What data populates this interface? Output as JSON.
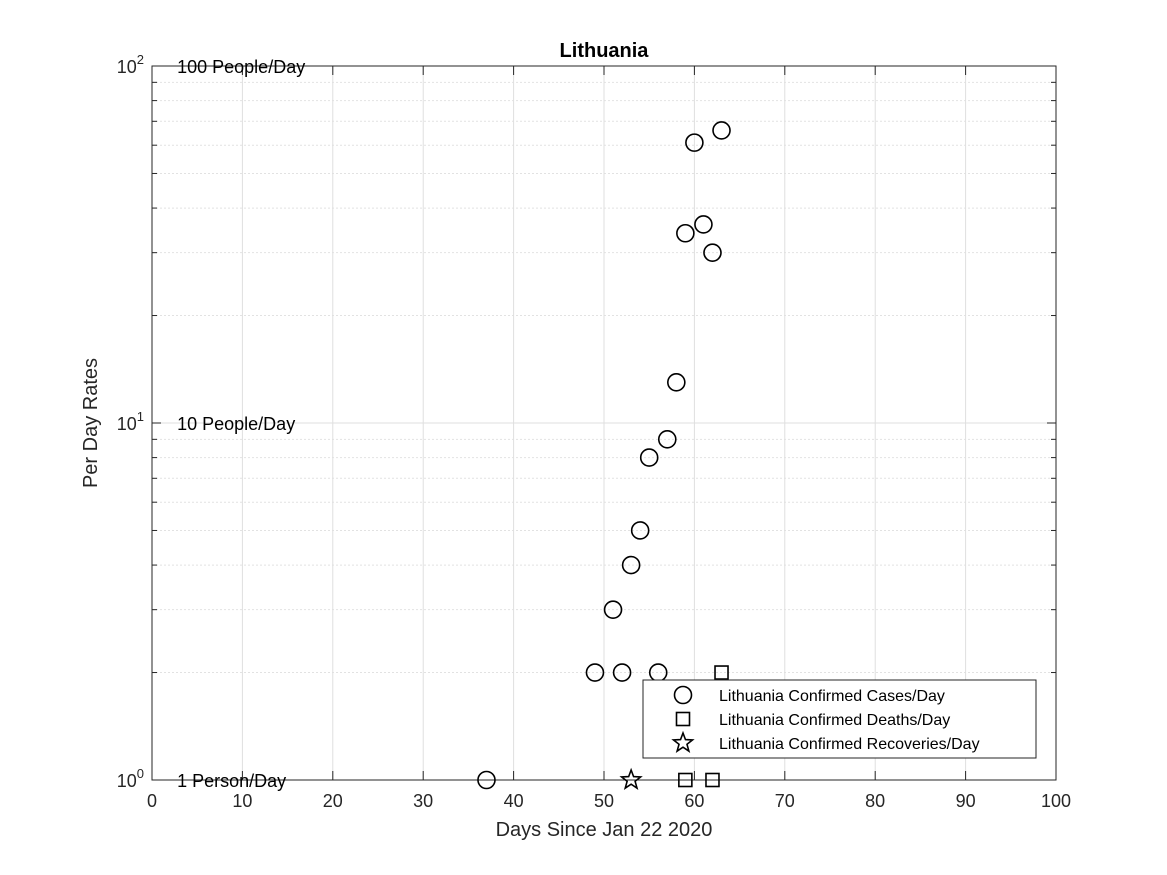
{
  "chart_data": {
    "type": "scatter",
    "title": "Lithuania",
    "xlabel": "Days Since Jan 22 2020",
    "ylabel": "Per Day Rates",
    "xlim": [
      0,
      100
    ],
    "ylim": [
      1,
      100
    ],
    "yscale": "log",
    "grid": true,
    "legend_position": "bottom-right",
    "x_ticks": [
      0,
      10,
      20,
      30,
      40,
      50,
      60,
      70,
      80,
      90,
      100
    ],
    "y_ticks": [
      {
        "value": 1,
        "base": "10",
        "exp": "0"
      },
      {
        "value": 10,
        "base": "10",
        "exp": "1"
      },
      {
        "value": 100,
        "base": "10",
        "exp": "2"
      }
    ],
    "annotations": [
      {
        "text": "100 People/Day",
        "x": 3,
        "y": 100
      },
      {
        "text": "10 People/Day",
        "x": 3,
        "y": 10
      },
      {
        "text": "1 Person/Day",
        "x": 3,
        "y": 1
      }
    ],
    "series": [
      {
        "name": "Lithuania Confirmed Cases/Day",
        "marker": "circle",
        "x": [
          37,
          49,
          51,
          52,
          53,
          54,
          55,
          56,
          57,
          58,
          59,
          60,
          61,
          62,
          63
        ],
        "y": [
          1,
          2,
          3,
          2,
          4,
          5,
          8,
          2,
          9,
          13,
          34,
          61,
          36,
          30,
          66
        ]
      },
      {
        "name": "Lithuania Confirmed Deaths/Day",
        "marker": "square",
        "x": [
          59,
          62,
          63
        ],
        "y": [
          1,
          1,
          2
        ]
      },
      {
        "name": "Lithuania Confirmed Recoveries/Day",
        "marker": "star",
        "x": [
          53
        ],
        "y": [
          1
        ]
      }
    ]
  }
}
